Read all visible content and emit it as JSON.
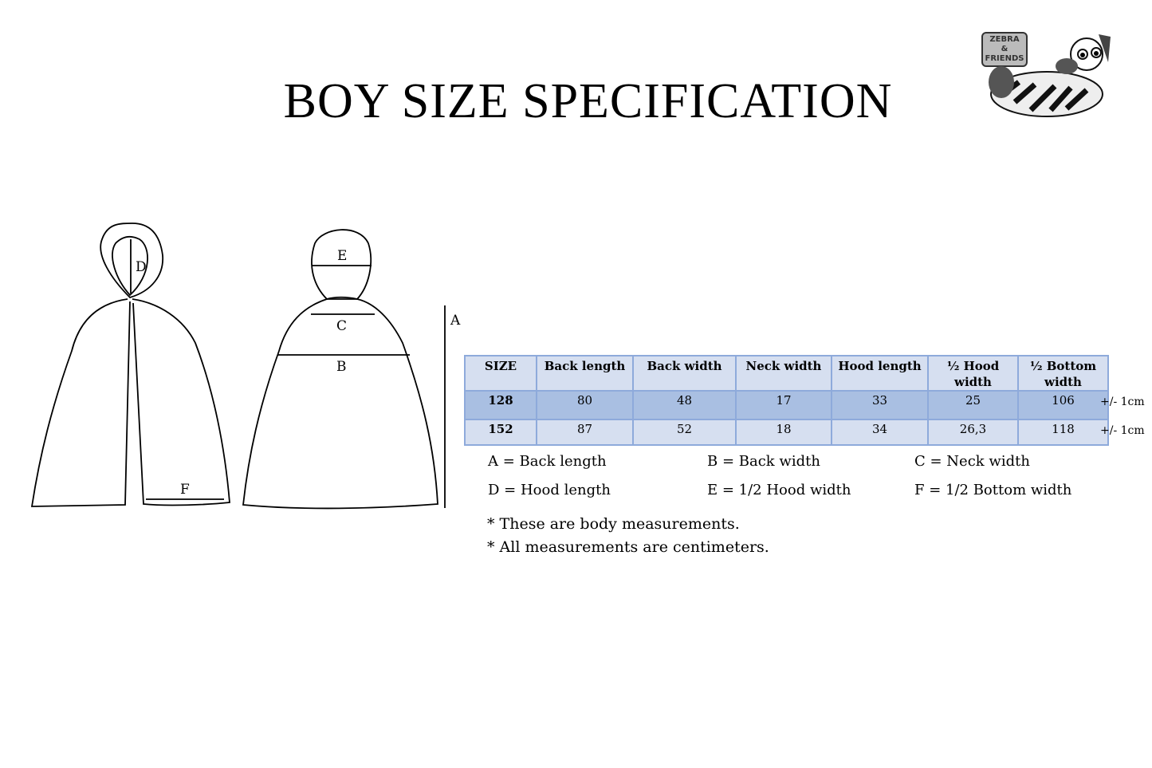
{
  "title": "BOY SIZE SPECIFICATION",
  "logo_text": "ZEBRA & FRIENDS",
  "diagram_labels": {
    "a": "A",
    "b": "B",
    "c": "C",
    "d": "D",
    "e": "E",
    "f": "F"
  },
  "table": {
    "headers": [
      "SIZE",
      "Back length",
      "Back width",
      "Neck width",
      "Hood length",
      "½ Hood width",
      "½ Bottom width"
    ],
    "rows": [
      {
        "cells": [
          "128",
          "80",
          "48",
          "17",
          "33",
          "25",
          "106"
        ],
        "tolerance": "+/- 1cm"
      },
      {
        "cells": [
          "152",
          "87",
          "52",
          "18",
          "34",
          "26,3",
          "118"
        ],
        "tolerance": "+/- 1cm"
      }
    ]
  },
  "legend": [
    "A = Back length",
    "B = Back width",
    "C = Neck width",
    "D = Hood length",
    "E = 1/2 Hood width",
    "F = 1/2 Bottom width"
  ],
  "notes": [
    "* These are body measurements.",
    "* All measurements are centimeters."
  ],
  "colors": {
    "header_bg": "#d6dff0",
    "row_highlight": "#a9bfe2",
    "border": "#8eaadb"
  }
}
